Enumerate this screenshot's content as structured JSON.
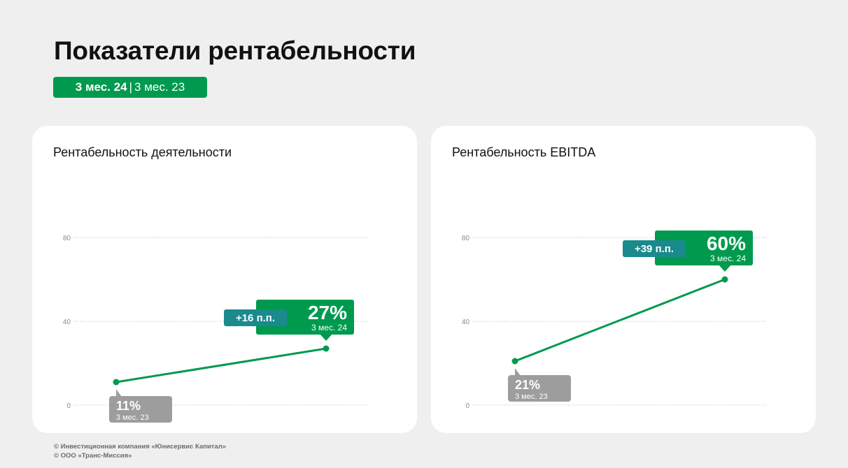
{
  "header": {
    "title": "Показатели рентабельности",
    "period_current": "3 мес. 24",
    "period_separator": "|",
    "period_previous": "3 мес. 23"
  },
  "chart_data": [
    {
      "type": "line",
      "title": "Рентабельность деятельности",
      "ylim": [
        0,
        80
      ],
      "yticks": [
        0,
        40,
        80
      ],
      "grid": true,
      "x": [
        "3 мес. 23",
        "3 мес. 24"
      ],
      "values": [
        11,
        27
      ],
      "start_label": {
        "value": "11%",
        "period": "3 мес. 23"
      },
      "end_label": {
        "value": "27%",
        "period": "3 мес. 24"
      },
      "delta_label": "+16 п.п."
    },
    {
      "type": "line",
      "title": "Рентабельность EBITDA",
      "ylim": [
        0,
        80
      ],
      "yticks": [
        0,
        40,
        80
      ],
      "grid": true,
      "x": [
        "3 мес. 23",
        "3 мес. 24"
      ],
      "values": [
        21,
        60
      ],
      "start_label": {
        "value": "21%",
        "period": "3 мес. 23"
      },
      "end_label": {
        "value": "60%",
        "period": "3 мес. 24"
      },
      "delta_label": "+39 п.п."
    }
  ],
  "colors": {
    "green": "#009a4e",
    "teal": "#1a8a8c",
    "grey": "#9d9d9d",
    "grid": "#cfcfcf"
  },
  "footer": {
    "line1": "© Инвестиционная компания «Юнисервис Капитал»",
    "line2": "© ООО «Транс-Миссия»"
  }
}
